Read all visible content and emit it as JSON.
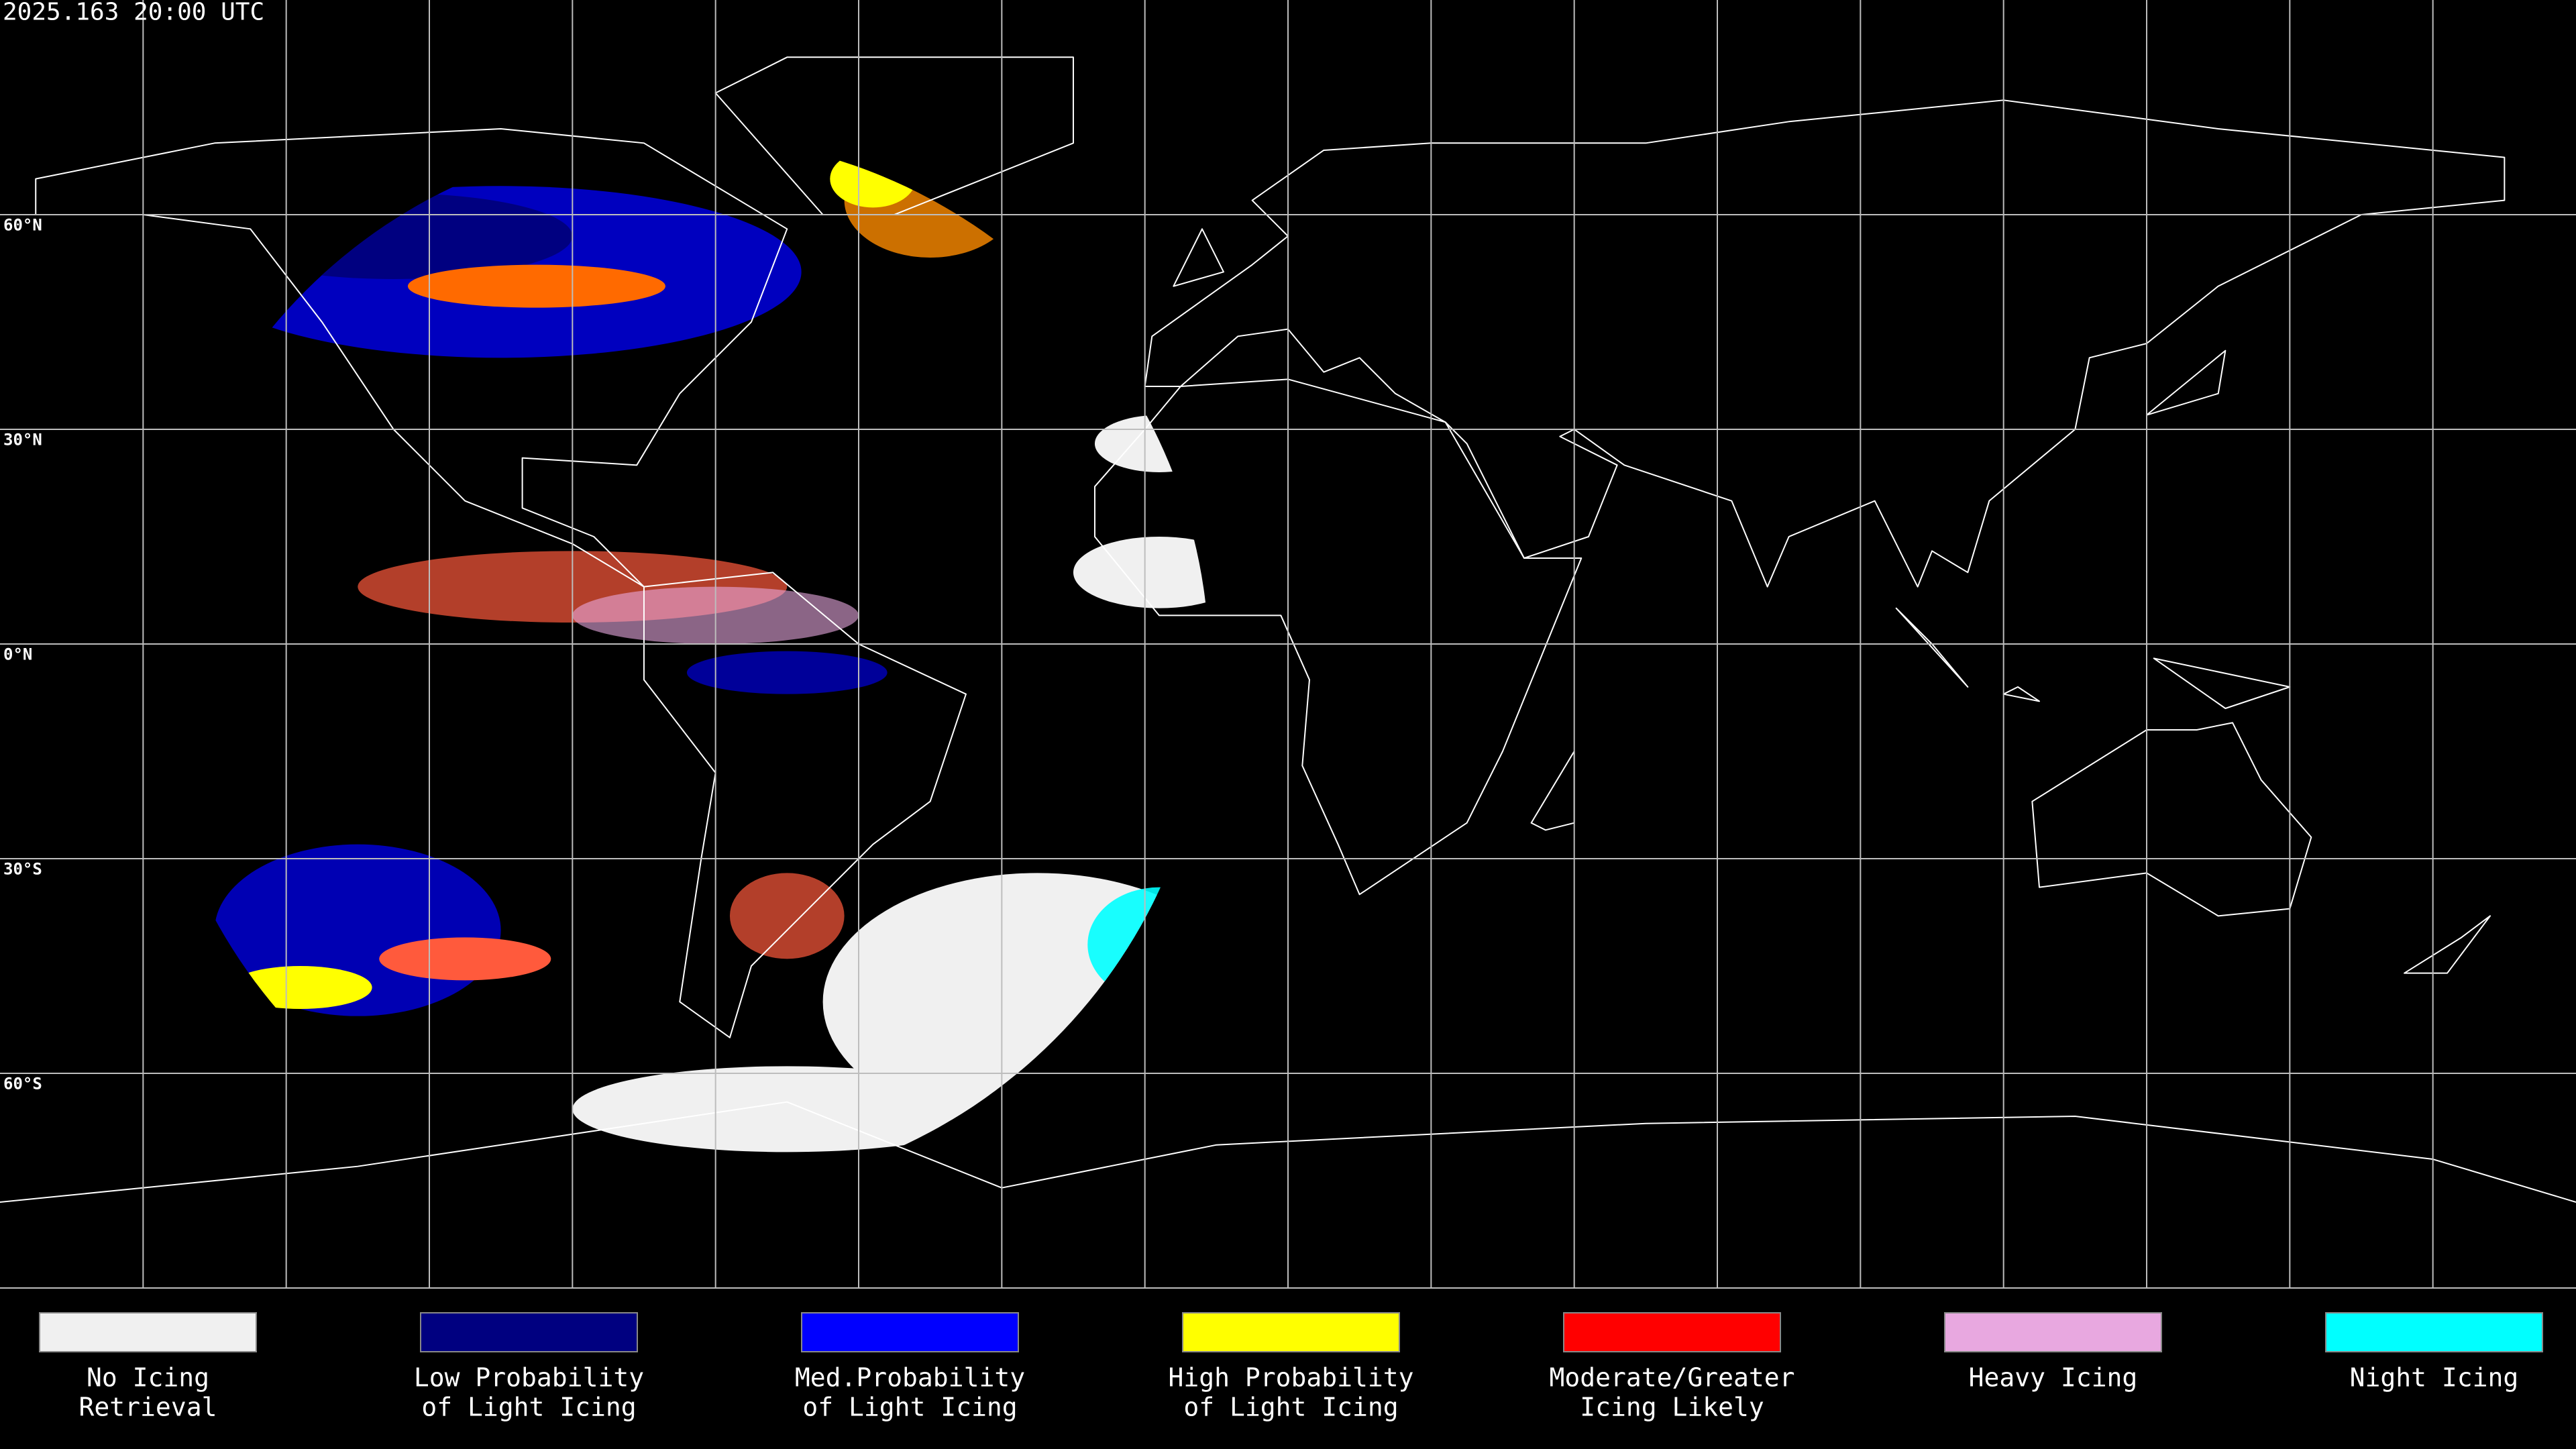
{
  "header": {
    "timestamp": "2025.163 20:00 UTC"
  },
  "grid_labels": [
    "60°N",
    "30°N",
    "0°N",
    "30°S",
    "60°S"
  ],
  "legend": [
    {
      "lines": [
        "No Icing",
        "Retrieval"
      ],
      "color": "#f0f0f0"
    },
    {
      "lines": [
        "Low Probability",
        "of Light Icing"
      ],
      "color": "#000080"
    },
    {
      "lines": [
        "Med.Probability",
        "of Light Icing"
      ],
      "color": "#0000ff"
    },
    {
      "lines": [
        "High Probability",
        "of Light Icing"
      ],
      "color": "#ffff00"
    },
    {
      "lines": [
        "Moderate/Greater",
        "Icing Likely"
      ],
      "color": "#ff0000"
    },
    {
      "lines": [
        "Heavy Icing"
      ],
      "color": "#e8a8e0"
    },
    {
      "lines": [
        "Night Icing"
      ],
      "color": "#00ffff"
    }
  ]
}
